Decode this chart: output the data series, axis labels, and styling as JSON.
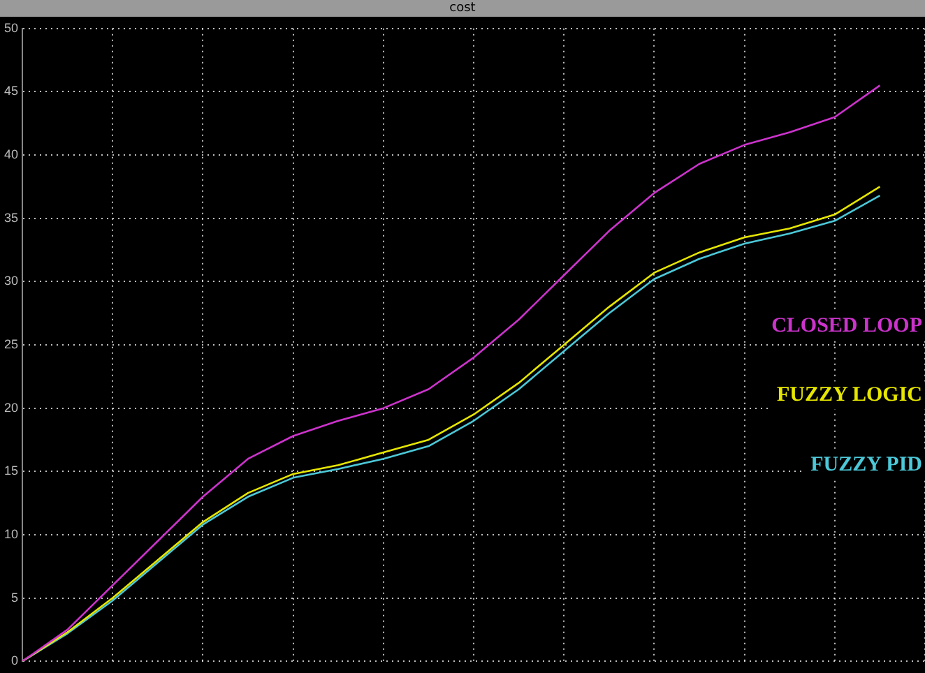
{
  "chart_data": {
    "type": "line",
    "title": "cost",
    "tick_labels": "y",
    "grid": true,
    "legend": false,
    "marker": "none",
    "line_style": "solid",
    "categories": [
      null,
      null,
      null,
      null,
      null,
      null,
      null,
      null,
      null,
      null,
      null,
      null,
      null,
      null,
      null,
      null,
      null,
      null,
      null,
      null,
      null
    ],
    "ylim": [
      0,
      50
    ],
    "yticks": [
      0,
      5,
      10,
      15,
      20,
      25,
      30,
      35,
      40,
      45,
      50
    ],
    "series": [
      {
        "name": "CLOSED LOOP",
        "color": "#cc33cc",
        "values": [
          0,
          2.5,
          6,
          9.5,
          13,
          16,
          17.8,
          19,
          20,
          21.5,
          24,
          27,
          30.5,
          34,
          37,
          39.3,
          40.8,
          41.8,
          43,
          45.5,
          null
        ]
      },
      {
        "name": "FUZZY LOGIC",
        "color": "#e6e600",
        "values": [
          0,
          2.3,
          5,
          8,
          11,
          13.3,
          14.8,
          15.5,
          16.5,
          17.5,
          19.5,
          22,
          25,
          28,
          30.7,
          32.3,
          33.5,
          34.2,
          35.3,
          37.5,
          null
        ]
      },
      {
        "name": "FUZZY PID",
        "color": "#4cc8d8",
        "values": [
          0,
          2.2,
          4.8,
          7.8,
          10.8,
          13,
          14.5,
          15.2,
          16,
          17,
          19,
          21.5,
          24.5,
          27.5,
          30.2,
          31.8,
          33,
          33.8,
          34.8,
          36.8,
          null
        ]
      }
    ]
  }
}
